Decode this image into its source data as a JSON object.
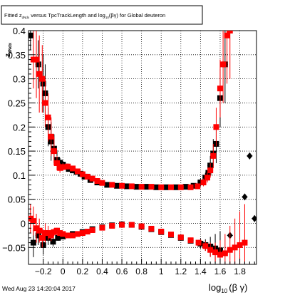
{
  "title_box": {
    "prefix": "Fitted  z",
    "sub1": "dNdx",
    "middle": "  versus TpcTrackLength and log",
    "sub2": "10",
    "suffix": "(βγ) for Global deuteron"
  },
  "timestamp": "Wed Aug 23 14:20:04 2017",
  "colors": {
    "black_series": "#000000",
    "red_series": "#ff0000",
    "frame": "#000000"
  },
  "chart_data": {
    "type": "scatter",
    "title": "",
    "xlabel_main": "log",
    "xlabel_sub": "10",
    "xlabel_tail": "(β γ)",
    "ylabel_main": "z",
    "ylabel_sub": "dNdx",
    "xlim": [
      -0.35,
      1.97
    ],
    "ylim": [
      -0.085,
      0.4
    ],
    "x_tick_labels": [
      {
        "v": -0.2,
        "t": "−0.2"
      },
      {
        "v": 0,
        "t": "0"
      },
      {
        "v": 0.2,
        "t": "0.2"
      },
      {
        "v": 0.4,
        "t": "0.4"
      },
      {
        "v": 0.6,
        "t": "0.6"
      },
      {
        "v": 0.8,
        "t": "0.8"
      },
      {
        "v": 1.0,
        "t": "1"
      },
      {
        "v": 1.2,
        "t": "1.2"
      },
      {
        "v": 1.4,
        "t": "1.4"
      },
      {
        "v": 1.6,
        "t": "1.6"
      },
      {
        "v": 1.8,
        "t": "1.8"
      }
    ],
    "y_tick_labels": [
      {
        "v": -0.05,
        "t": "−0.05"
      },
      {
        "v": 0,
        "t": "0"
      },
      {
        "v": 0.05,
        "t": "0.05"
      },
      {
        "v": 0.1,
        "t": "0.1"
      },
      {
        "v": 0.15,
        "t": "0.15"
      },
      {
        "v": 0.2,
        "t": "0.2"
      },
      {
        "v": 0.25,
        "t": "0.25"
      },
      {
        "v": 0.3,
        "t": "0.3"
      },
      {
        "v": 0.35,
        "t": "0.35"
      },
      {
        "v": 0.4,
        "t": "0.4"
      }
    ],
    "series": [
      {
        "color": "#000000",
        "marker": "square",
        "points": [
          [
            -0.33,
            0.39,
            0.03
          ],
          [
            -0.25,
            0.33,
            0.05
          ],
          [
            -0.2,
            0.29,
            0.06
          ],
          [
            -0.18,
            0.27,
            0.06
          ],
          [
            -0.15,
            0.2,
            0.04
          ],
          [
            -0.12,
            0.17,
            0.04
          ],
          [
            -0.09,
            0.155,
            0.03
          ],
          [
            -0.06,
            0.132,
            0.02
          ],
          [
            -0.03,
            0.126,
            0.01
          ],
          [
            0.0,
            0.122,
            0.008
          ],
          [
            0.03,
            0.118,
            0.006
          ],
          [
            0.06,
            0.113,
            0.005
          ],
          [
            0.1,
            0.11,
            0.005
          ],
          [
            0.14,
            0.107,
            0.005
          ],
          [
            0.18,
            0.103,
            0.004
          ],
          [
            0.22,
            0.097,
            0.004
          ],
          [
            0.28,
            0.09,
            0.003
          ],
          [
            0.35,
            0.085,
            0.003
          ],
          [
            0.45,
            0.08,
            0.002
          ],
          [
            0.55,
            0.078,
            0.002
          ],
          [
            0.65,
            0.077,
            0.002
          ],
          [
            0.75,
            0.076,
            0.002
          ],
          [
            0.85,
            0.076,
            0.002
          ],
          [
            0.95,
            0.075,
            0.002
          ],
          [
            1.05,
            0.075,
            0.002
          ],
          [
            1.15,
            0.075,
            0.003
          ],
          [
            1.25,
            0.076,
            0.004
          ],
          [
            1.33,
            0.078,
            0.005
          ],
          [
            1.4,
            0.085,
            0.008
          ],
          [
            1.45,
            0.095,
            0.01
          ],
          [
            1.48,
            0.105,
            0.015
          ],
          [
            1.5,
            0.12,
            0.02
          ],
          [
            1.53,
            0.145,
            0.03
          ],
          [
            1.56,
            0.165,
            0.04
          ],
          [
            1.6,
            0.26,
            0.06
          ],
          [
            1.65,
            0.33,
            0.08
          ]
        ]
      },
      {
        "color": "#000000",
        "marker": "square",
        "points": [
          [
            -0.3,
            -0.04,
            0.03
          ],
          [
            -0.25,
            -0.025,
            0.02
          ],
          [
            -0.2,
            -0.045,
            0.02
          ],
          [
            -0.15,
            -0.03,
            0.015
          ],
          [
            -0.1,
            -0.038,
            0.01
          ],
          [
            -0.05,
            -0.03,
            0.006
          ],
          [
            0.0,
            -0.027,
            0.005
          ],
          [
            0.1,
            -0.022,
            0.004
          ],
          [
            0.2,
            -0.018,
            0.003
          ],
          [
            0.3,
            -0.012,
            0.003
          ],
          [
            0.4,
            -0.008,
            0.002
          ],
          [
            0.5,
            -0.004,
            0.002
          ],
          [
            0.6,
            -0.002,
            0.002
          ],
          [
            0.7,
            -0.003,
            0.002
          ],
          [
            0.8,
            -0.007,
            0.002
          ],
          [
            0.9,
            -0.012,
            0.002
          ],
          [
            1.0,
            -0.018,
            0.003
          ],
          [
            1.1,
            -0.024,
            0.003
          ],
          [
            1.2,
            -0.03,
            0.004
          ],
          [
            1.3,
            -0.036,
            0.005
          ],
          [
            1.4,
            -0.042,
            0.01
          ],
          [
            1.45,
            -0.045,
            0.012
          ],
          [
            1.5,
            -0.048,
            0.02
          ],
          [
            1.55,
            -0.052,
            0.03
          ],
          [
            1.6,
            -0.056,
            0.04
          ]
        ]
      },
      {
        "color": "#000000",
        "marker": "diamond",
        "points": [
          [
            1.9,
            0.14,
            0.0
          ],
          [
            1.85,
            0.055,
            0.0
          ],
          [
            1.95,
            0.01,
            0.0
          ],
          [
            1.7,
            -0.025,
            0.0
          ]
        ]
      },
      {
        "color": "#ff0000",
        "marker": "square",
        "points": [
          [
            -0.3,
            0.34,
            0.06
          ],
          [
            -0.27,
            0.34,
            0.08
          ],
          [
            -0.24,
            0.31,
            0.08
          ],
          [
            -0.21,
            0.3,
            0.07
          ],
          [
            -0.18,
            0.25,
            0.05
          ],
          [
            -0.15,
            0.22,
            0.05
          ],
          [
            -0.12,
            0.18,
            0.04
          ],
          [
            -0.09,
            0.15,
            0.03
          ],
          [
            -0.06,
            0.125,
            0.015
          ],
          [
            -0.03,
            0.115,
            0.01
          ],
          [
            0.0,
            0.117,
            0.008
          ],
          [
            0.05,
            0.118,
            0.006
          ],
          [
            0.1,
            0.114,
            0.005
          ],
          [
            0.15,
            0.108,
            0.005
          ],
          [
            0.2,
            0.102,
            0.004
          ],
          [
            0.25,
            0.097,
            0.004
          ],
          [
            0.3,
            0.093,
            0.003
          ],
          [
            0.35,
            0.088,
            0.003
          ],
          [
            0.4,
            0.084,
            0.002
          ],
          [
            0.5,
            0.08,
            0.002
          ],
          [
            0.6,
            0.078,
            0.002
          ],
          [
            0.7,
            0.077,
            0.002
          ],
          [
            0.8,
            0.076,
            0.002
          ],
          [
            0.9,
            0.076,
            0.002
          ],
          [
            1.0,
            0.075,
            0.002
          ],
          [
            1.1,
            0.075,
            0.002
          ],
          [
            1.2,
            0.075,
            0.003
          ],
          [
            1.3,
            0.075,
            0.004
          ],
          [
            1.37,
            0.077,
            0.006
          ],
          [
            1.43,
            0.085,
            0.008
          ],
          [
            1.47,
            0.095,
            0.01
          ],
          [
            1.5,
            0.11,
            0.015
          ],
          [
            1.53,
            0.14,
            0.025
          ],
          [
            1.56,
            0.2,
            0.04
          ],
          [
            1.6,
            0.28,
            0.06
          ],
          [
            1.63,
            0.33,
            0.08
          ],
          [
            1.67,
            0.39,
            0.1
          ],
          [
            1.7,
            0.4,
            0.1
          ]
        ]
      },
      {
        "color": "#ff0000",
        "marker": "square",
        "points": [
          [
            -0.33,
            0.01,
            0.03
          ],
          [
            -0.3,
            0.005,
            0.03
          ],
          [
            -0.27,
            -0.01,
            0.03
          ],
          [
            -0.24,
            -0.015,
            0.025
          ],
          [
            -0.21,
            -0.03,
            0.02
          ],
          [
            -0.18,
            -0.02,
            0.02
          ],
          [
            -0.15,
            -0.02,
            0.015
          ],
          [
            -0.12,
            -0.025,
            0.012
          ],
          [
            -0.09,
            -0.018,
            0.008
          ],
          [
            -0.06,
            -0.015,
            0.006
          ],
          [
            -0.03,
            -0.02,
            0.005
          ],
          [
            0.0,
            -0.022,
            0.004
          ],
          [
            0.05,
            -0.025,
            0.004
          ],
          [
            0.1,
            -0.025,
            0.003
          ],
          [
            0.15,
            -0.022,
            0.003
          ],
          [
            0.2,
            -0.02,
            0.003
          ],
          [
            0.25,
            -0.017,
            0.003
          ],
          [
            0.3,
            -0.014,
            0.003
          ],
          [
            0.4,
            -0.009,
            0.002
          ],
          [
            0.5,
            -0.005,
            0.002
          ],
          [
            0.6,
            -0.003,
            0.002
          ],
          [
            0.7,
            -0.003,
            0.002
          ],
          [
            0.8,
            -0.006,
            0.002
          ],
          [
            0.9,
            -0.011,
            0.002
          ],
          [
            1.0,
            -0.017,
            0.003
          ],
          [
            1.1,
            -0.023,
            0.003
          ],
          [
            1.2,
            -0.029,
            0.004
          ],
          [
            1.3,
            -0.035,
            0.005
          ],
          [
            1.38,
            -0.04,
            0.006
          ],
          [
            1.45,
            -0.047,
            0.01
          ],
          [
            1.5,
            -0.055,
            0.015
          ],
          [
            1.55,
            -0.06,
            0.02
          ],
          [
            1.6,
            -0.065,
            0.03
          ],
          [
            1.65,
            -0.062,
            0.04
          ],
          [
            1.7,
            -0.055,
            0.05
          ],
          [
            1.75,
            -0.05,
            0.06
          ],
          [
            1.8,
            -0.045,
            0.07
          ],
          [
            1.85,
            -0.04,
            0.08
          ]
        ]
      }
    ]
  }
}
